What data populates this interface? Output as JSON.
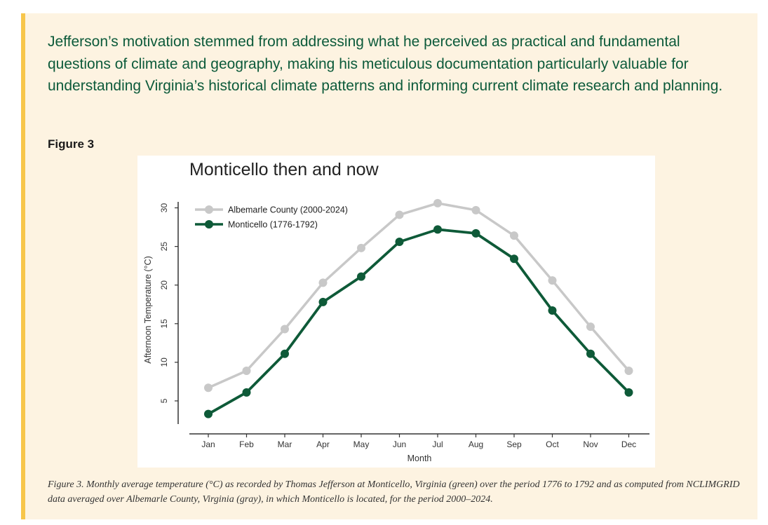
{
  "intro_text": "Jefferson’s motivation stemmed from addressing what he perceived as practical and fundamental questions of climate and geography, making his meticulous documentation particularly valuable for understanding Virginia’s historical climate patterns and informing current climate research and planning.",
  "figure_label": "Figure 3",
  "caption": "Figure 3. Monthly average temperature (°C) as recorded by Thomas Jefferson at Monticello, Virginia (green) over the period 1776 to 1792 and as computed from NCLIMGRID data averaged over Albemarle County, Virginia (gray), in which Monticello is located, for the period 2000–2024.",
  "colors": {
    "albemarle": "#c8c8c8",
    "monticello": "#0e5a38",
    "accent": "#f7c64b",
    "panel": "#fdf3e1"
  },
  "chart_data": {
    "type": "line",
    "title": "Monticello then and now",
    "xlabel": "Month",
    "ylabel": "Afternoon Temperature (°C)",
    "categories": [
      "Jan",
      "Feb",
      "Mar",
      "Apr",
      "May",
      "Jun",
      "Jul",
      "Aug",
      "Sep",
      "Oct",
      "Nov",
      "Dec"
    ],
    "yticks": [
      5,
      10,
      15,
      20,
      25,
      30
    ],
    "ylim": [
      2,
      31.5
    ],
    "grid": false,
    "legend_position": "top-left",
    "series": [
      {
        "name": "Albemarle County (2000-2024)",
        "color": "#c8c8c8",
        "values": [
          6.7,
          8.9,
          14.3,
          20.3,
          24.8,
          29.1,
          30.6,
          29.7,
          26.4,
          20.6,
          14.6,
          8.9
        ]
      },
      {
        "name": "Monticello (1776-1792)",
        "color": "#0e5a38",
        "values": [
          3.3,
          6.1,
          11.1,
          17.8,
          21.1,
          25.6,
          27.2,
          26.7,
          23.4,
          16.7,
          11.1,
          6.1
        ]
      }
    ]
  }
}
